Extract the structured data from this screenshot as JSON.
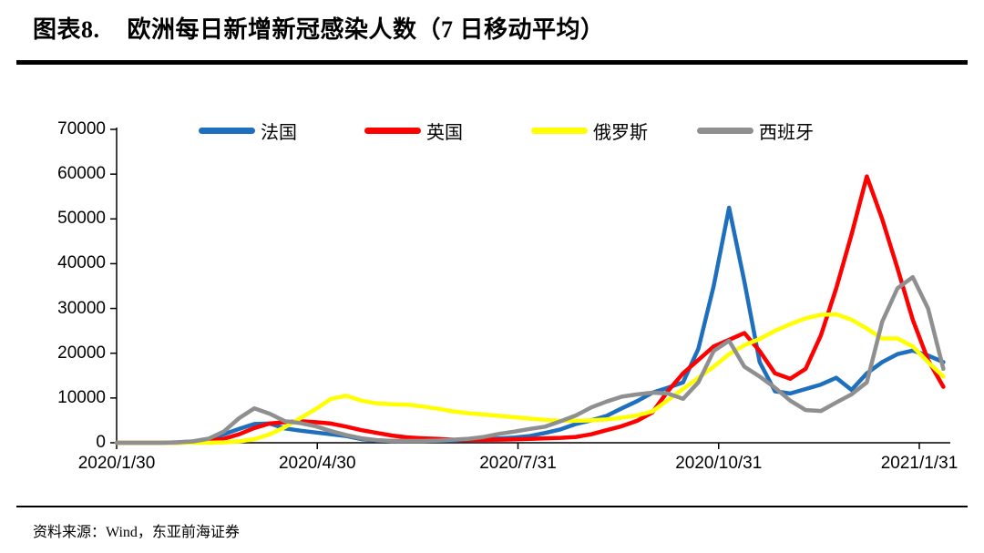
{
  "header": {
    "label": "图表8.",
    "title": "欧洲每日新增新冠感染人数（7 日移动平均）"
  },
  "footer": {
    "source_text": "资料来源：Wind，东亚前海证券"
  },
  "chart_data": {
    "type": "line",
    "title": "欧洲每日新增新冠感染人数（7 日移动平均）",
    "xlabel": "",
    "ylabel": "",
    "ylim": [
      0,
      70000
    ],
    "y_ticks": [
      0,
      10000,
      20000,
      30000,
      40000,
      50000,
      60000,
      70000
    ],
    "x_tick_labels": [
      "2020/1/30",
      "2020/4/30",
      "2020/7/31",
      "2020/10/31",
      "2021/1/31"
    ],
    "grid": false,
    "legend_position": "top",
    "x": [
      "2020/1/30",
      "2020/2/6",
      "2020/2/13",
      "2020/2/20",
      "2020/2/27",
      "2020/3/5",
      "2020/3/12",
      "2020/3/19",
      "2020/3/26",
      "2020/4/2",
      "2020/4/9",
      "2020/4/16",
      "2020/4/23",
      "2020/4/30",
      "2020/5/7",
      "2020/5/14",
      "2020/5/21",
      "2020/5/28",
      "2020/6/4",
      "2020/6/11",
      "2020/6/18",
      "2020/6/25",
      "2020/7/2",
      "2020/7/9",
      "2020/7/16",
      "2020/7/23",
      "2020/7/30",
      "2020/8/6",
      "2020/8/13",
      "2020/8/20",
      "2020/8/27",
      "2020/9/3",
      "2020/9/10",
      "2020/9/17",
      "2020/9/24",
      "2020/10/1",
      "2020/10/8",
      "2020/10/15",
      "2020/10/22",
      "2020/10/29",
      "2020/11/5",
      "2020/11/12",
      "2020/11/19",
      "2020/11/26",
      "2020/12/3",
      "2020/12/10",
      "2020/12/17",
      "2020/12/24",
      "2020/12/31",
      "2021/1/7",
      "2021/1/14",
      "2021/1/21",
      "2021/1/28",
      "2021/2/4",
      "2021/2/11"
    ],
    "series": [
      {
        "key": "france",
        "name": "法国",
        "color": "#1e6fbe",
        "values": [
          0,
          0,
          0,
          0,
          100,
          300,
          900,
          1900,
          3100,
          4200,
          4300,
          3200,
          2700,
          2300,
          1900,
          1500,
          800,
          500,
          400,
          400,
          400,
          450,
          500,
          600,
          750,
          950,
          1150,
          1500,
          2200,
          3000,
          4200,
          5000,
          6000,
          7700,
          9300,
          11200,
          12300,
          13500,
          21000,
          35000,
          52500,
          36000,
          18000,
          11500,
          11000,
          12000,
          13000,
          14500,
          11800,
          15500,
          18000,
          19800,
          20600,
          19500,
          18000
        ]
      },
      {
        "key": "uk",
        "name": "英国",
        "color": "#fe0000",
        "values": [
          0,
          0,
          0,
          0,
          0,
          100,
          400,
          900,
          1900,
          3300,
          4300,
          4600,
          4800,
          4600,
          4300,
          3600,
          2800,
          2200,
          1600,
          1200,
          1000,
          850,
          700,
          650,
          650,
          700,
          750,
          850,
          1000,
          1100,
          1300,
          1900,
          2800,
          3700,
          4900,
          6800,
          11500,
          15500,
          18500,
          21500,
          23000,
          24500,
          20500,
          15500,
          14300,
          16500,
          24000,
          34500,
          46500,
          59500,
          50000,
          39000,
          27500,
          18500,
          12500
        ]
      },
      {
        "key": "russia",
        "name": "俄罗斯",
        "color": "#ffff00",
        "values": [
          0,
          0,
          0,
          0,
          0,
          0,
          0,
          100,
          300,
          800,
          1900,
          3500,
          5500,
          7500,
          9800,
          10500,
          9400,
          8800,
          8600,
          8500,
          8100,
          7600,
          7000,
          6600,
          6300,
          6000,
          5700,
          5400,
          5100,
          4900,
          4900,
          5000,
          5200,
          5600,
          6100,
          7000,
          9500,
          12000,
          14500,
          17000,
          19800,
          21800,
          23200,
          25000,
          26500,
          27800,
          28600,
          28700,
          27500,
          25500,
          23300,
          23300,
          21500,
          18000,
          14800
        ]
      },
      {
        "key": "spain",
        "name": "西班牙",
        "color": "#8f8f8f",
        "values": [
          0,
          0,
          0,
          0,
          100,
          300,
          900,
          2500,
          5500,
          7700,
          6500,
          4800,
          4400,
          3700,
          2600,
          1700,
          1000,
          600,
          400,
          400,
          400,
          500,
          700,
          900,
          1300,
          2000,
          2500,
          3100,
          3600,
          4800,
          6100,
          7900,
          9200,
          10300,
          10800,
          11200,
          11000,
          9800,
          13500,
          20500,
          22800,
          17000,
          14800,
          12300,
          9400,
          7300,
          7100,
          9000,
          10800,
          13500,
          27000,
          34500,
          37000,
          30000,
          16500
        ]
      }
    ]
  }
}
